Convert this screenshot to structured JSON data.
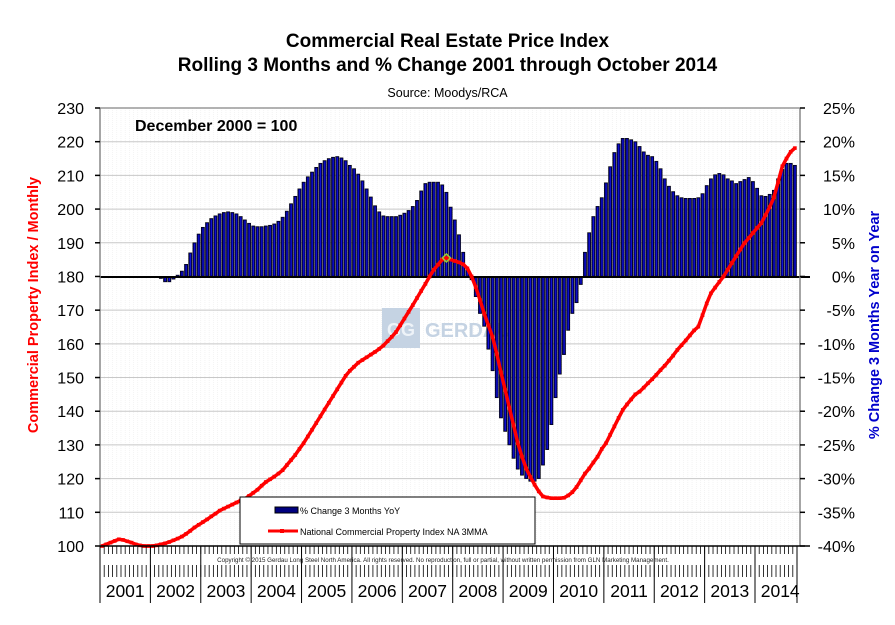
{
  "chart_data": {
    "type": "bar+line",
    "title": "Commercial Real Estate Price Index",
    "subtitle": "Rolling 3 Months and % Change 2001 through October 2014",
    "source": "Source: Moodys/RCA",
    "annotation": "December 2000 = 100",
    "copyright": "Copyright © 2015 Gerdau Long Steel North America.  All rights reserved.  No reproduction, full or partial, without written permission from GLN Marketing Management.",
    "watermark": "GERDAU",
    "ylabel_left": "Commercial Property Index / Monthly",
    "ylabel_right": "% Change 3 Months Year on Year",
    "ylim_left": [
      100,
      230
    ],
    "ylim_right": [
      -40,
      25
    ],
    "yticks_left": [
      "100",
      "110",
      "120",
      "130",
      "140",
      "150",
      "160",
      "170",
      "180",
      "190",
      "200",
      "210",
      "220",
      "230"
    ],
    "yticks_right": [
      "-40%",
      "-35%",
      "-30%",
      "-25%",
      "-20%",
      "-15%",
      "-10%",
      "-5%",
      "0%",
      "5%",
      "10%",
      "15%",
      "20%",
      "25%"
    ],
    "x_start": "2001-01",
    "x_end": "2014-10",
    "x_frequency": "monthly",
    "year_labels": [
      "2001",
      "2002",
      "2003",
      "2004",
      "2005",
      "2006",
      "2007",
      "2008",
      "2009",
      "2010",
      "2011",
      "2012",
      "2013",
      "2014"
    ],
    "grid": true,
    "legend_placement": "bottom-center",
    "colors": {
      "bars": "#00007f",
      "bar_highlight": "#1414e0",
      "line": "#ff0000",
      "left_axis_title": "#ff0000",
      "right_axis_title": "#0000cc",
      "peak_marker": "#9acd32"
    },
    "series": [
      {
        "name": "% Change 3 Months YoY",
        "type": "bar",
        "axis": "right",
        "values": [
          0,
          0,
          0,
          0,
          0,
          0,
          0,
          0,
          0,
          0,
          0,
          0,
          0,
          0,
          -0.3,
          -0.8,
          -0.8,
          -0.4,
          0.2,
          0.8,
          1.8,
          3.5,
          5.0,
          6.3,
          7.3,
          8.0,
          8.6,
          9.0,
          9.3,
          9.5,
          9.6,
          9.5,
          9.3,
          8.9,
          8.4,
          7.9,
          7.5,
          7.4,
          7.4,
          7.5,
          7.6,
          7.8,
          8.2,
          8.8,
          9.7,
          10.8,
          11.9,
          13.0,
          14.0,
          14.8,
          15.5,
          16.2,
          16.8,
          17.2,
          17.5,
          17.7,
          17.8,
          17.6,
          17.2,
          16.5,
          16.0,
          15.2,
          14.2,
          13.0,
          11.8,
          10.5,
          9.6,
          9.0,
          8.9,
          8.9,
          8.9,
          9.1,
          9.4,
          9.8,
          10.4,
          11.3,
          12.7,
          13.8,
          14.0,
          14.0,
          14.0,
          13.6,
          12.5,
          10.3,
          8.4,
          6.2,
          3.6,
          1.2,
          -0.5,
          -3.0,
          -5.5,
          -7.4,
          -10.8,
          -14.0,
          -18.0,
          -21.0,
          -23.0,
          -25.0,
          -27.0,
          -28.6,
          -29.5,
          -30.0,
          -30.4,
          -30.4,
          -30.0,
          -28.0,
          -25.7,
          -22.0,
          -18.0,
          -14.5,
          -11.6,
          -8.0,
          -5.5,
          -3.9,
          -1.2,
          3.6,
          6.5,
          8.9,
          10.4,
          11.7,
          13.9,
          16.3,
          18.4,
          19.7,
          20.5,
          20.5,
          20.3,
          20.0,
          19.3,
          18.5,
          18.0,
          17.8,
          17.1,
          16.0,
          14.5,
          13.4,
          12.6,
          12.0,
          11.7,
          11.6,
          11.6,
          11.6,
          11.7,
          12.3,
          13.5,
          14.5,
          15.1,
          15.3,
          15.1,
          14.5,
          14.2,
          13.8,
          14.1,
          14.4,
          14.7,
          14.1,
          13.1,
          12.0,
          11.9,
          12.2,
          12.8,
          14.5,
          15.9,
          16.8,
          16.8,
          16.5
        ]
      },
      {
        "name": "National Commercial Property Index NA 3MMA",
        "type": "line",
        "axis": "left",
        "values": [
          100.0,
          100.5,
          101.0,
          101.5,
          102.0,
          101.8,
          101.4,
          101.0,
          100.5,
          100.2,
          100.0,
          100.0,
          100.0,
          100.2,
          100.5,
          100.8,
          101.2,
          101.7,
          102.2,
          102.8,
          103.6,
          104.5,
          105.5,
          106.3,
          107.1,
          107.9,
          108.8,
          109.6,
          110.5,
          111.1,
          111.7,
          112.3,
          112.9,
          113.5,
          114.0,
          114.9,
          115.8,
          116.7,
          117.9,
          119.0,
          119.8,
          120.6,
          121.5,
          122.5,
          124.0,
          125.5,
          127.0,
          128.8,
          130.5,
          132.5,
          134.5,
          136.5,
          138.5,
          140.5,
          142.5,
          144.5,
          146.5,
          148.5,
          150.5,
          152.0,
          153.2,
          154.4,
          155.2,
          156.0,
          156.8,
          157.6,
          158.5,
          159.5,
          160.8,
          162.1,
          163.5,
          165.5,
          167.5,
          169.5,
          171.5,
          173.6,
          175.7,
          177.8,
          180.0,
          182.0,
          183.5,
          185.0,
          185.5,
          185.0,
          184.6,
          184.2,
          183.6,
          182.4,
          180.0,
          176.8,
          173.0,
          169.0,
          165.5,
          162.0,
          157.0,
          151.5,
          146.3,
          141.0,
          135.8,
          130.5,
          126.5,
          123.0,
          120.5,
          118.2,
          116.2,
          114.7,
          114.4,
          114.2,
          114.2,
          114.2,
          114.3,
          115.0,
          116.0,
          117.5,
          119.5,
          121.5,
          123.0,
          124.8,
          126.5,
          128.8,
          130.5,
          133.0,
          135.5,
          138.0,
          140.4,
          142.0,
          143.5,
          145.0,
          145.8,
          147.0,
          148.3,
          149.5,
          150.8,
          152.2,
          153.5,
          155.0,
          156.5,
          158.2,
          159.6,
          161.0,
          162.5,
          164.0,
          165.1,
          168.5,
          172.0,
          175.0,
          176.7,
          178.4,
          180.0,
          182.0,
          184.0,
          186.0,
          188.0,
          189.9,
          191.4,
          192.9,
          194.4,
          195.8,
          198.2,
          200.6,
          203.5,
          208.0,
          212.7,
          215.0,
          217.0,
          218.1
        ]
      }
    ]
  }
}
